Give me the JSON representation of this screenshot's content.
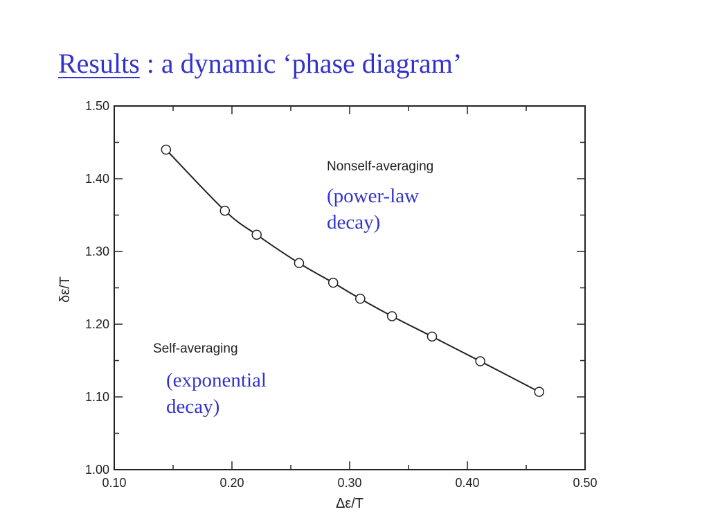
{
  "slide": {
    "title_link": "Results",
    "title_rest": " : a dynamic ‘phase diagram’"
  },
  "chart_data": {
    "type": "scatter",
    "xlabel": "Δε/T",
    "ylabel": "δε/T",
    "xlim": [
      0.1,
      0.5
    ],
    "ylim": [
      1.0,
      1.5
    ],
    "x_ticks": [
      "0.10",
      "0.20",
      "0.30",
      "0.40",
      "0.50"
    ],
    "y_ticks": [
      "1.00",
      "1.10",
      "1.20",
      "1.30",
      "1.40",
      "1.50"
    ],
    "grid": false,
    "series": [
      {
        "x": [
          0.144,
          0.194,
          0.221,
          0.257,
          0.286,
          0.309,
          0.336,
          0.37,
          0.411,
          0.461
        ],
        "y": [
          1.44,
          1.356,
          1.323,
          1.284,
          1.257,
          1.235,
          1.211,
          1.183,
          1.149,
          1.107
        ],
        "marker": "open-circle",
        "line": "solid",
        "color": "#222222"
      }
    ],
    "annotations": {
      "upper_region": "Nonself-averaging",
      "lower_region": "Self-averaging"
    }
  },
  "notes": {
    "upper": [
      "(power-law",
      "decay)"
    ],
    "lower": [
      "(exponential",
      "decay)"
    ]
  },
  "colors": {
    "accent": "#3333cc",
    "ink": "#222222"
  }
}
